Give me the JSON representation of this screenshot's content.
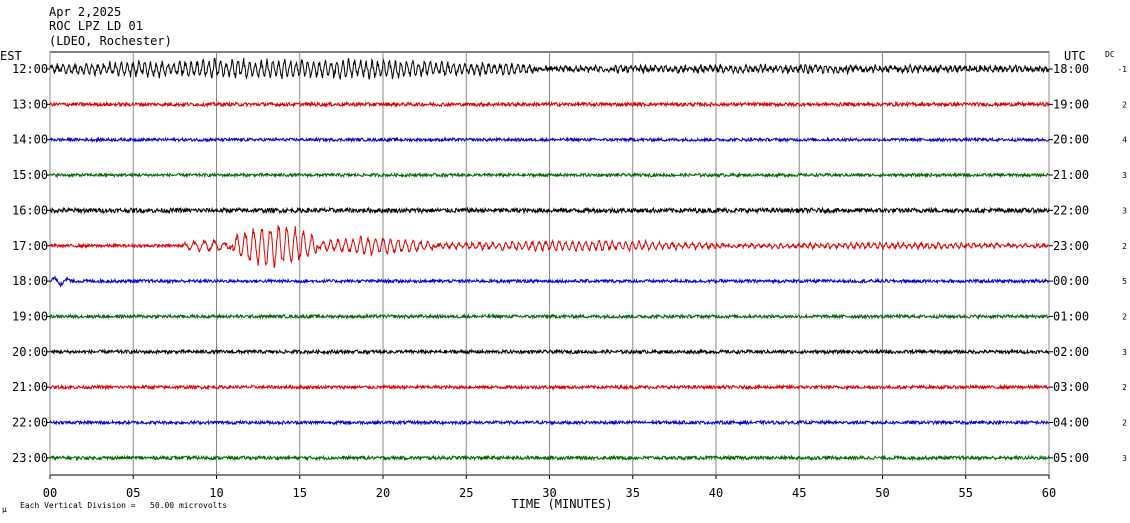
{
  "header": {
    "date": "Apr 2,2025",
    "station": "ROC LPZ LD 01",
    "network": "(LDEO, Rochester)"
  },
  "labels": {
    "left_tz": "EST",
    "right_tz": "UTC",
    "dc": "DC",
    "xlabel": "TIME (MINUTES)",
    "footer_mark": "µ",
    "footer": "Each Vertical Division =   50.00 microvolts"
  },
  "chart_data": {
    "type": "line",
    "title": "ROC LPZ LD 01",
    "xlabel": "TIME (MINUTES)",
    "ylabel": "",
    "xlim": [
      0,
      60
    ],
    "x_ticks": [
      "00",
      "05",
      "10",
      "15",
      "20",
      "25",
      "30",
      "35",
      "40",
      "45",
      "50",
      "55",
      "60"
    ],
    "grid": true,
    "vertical_division": "50.00 microvolts",
    "colors": [
      "#000000",
      "#dd0000",
      "#0000cc",
      "#006600"
    ],
    "rows": [
      {
        "est": "12:00",
        "utc": "18:00",
        "dc": "-1",
        "color": "#000000",
        "noise": 2.5,
        "events": [
          {
            "start": 0,
            "end": 29,
            "amp": 9,
            "period": 0.35
          },
          {
            "start": 29,
            "end": 60,
            "amp": 3,
            "period": 0.3
          }
        ]
      },
      {
        "est": "13:00",
        "utc": "19:00",
        "dc": "2",
        "color": "#dd0000",
        "noise": 1.8,
        "events": []
      },
      {
        "est": "14:00",
        "utc": "20:00",
        "dc": "4",
        "color": "#0000cc",
        "noise": 1.5,
        "events": []
      },
      {
        "est": "15:00",
        "utc": "21:00",
        "dc": "3",
        "color": "#006600",
        "noise": 1.5,
        "events": []
      },
      {
        "est": "16:00",
        "utc": "22:00",
        "dc": "3",
        "color": "#000000",
        "noise": 2.3,
        "events": []
      },
      {
        "est": "17:00",
        "utc": "23:00",
        "dc": "2",
        "color": "#dd0000",
        "noise": 1.5,
        "events": [
          {
            "start": 8,
            "end": 11,
            "amp": 6,
            "period": 0.6
          },
          {
            "start": 11,
            "end": 16,
            "amp": 22,
            "period": 0.5
          },
          {
            "start": 16,
            "end": 23,
            "amp": 9,
            "period": 0.45
          },
          {
            "start": 23,
            "end": 40,
            "amp": 5,
            "period": 0.4
          },
          {
            "start": 40,
            "end": 60,
            "amp": 2.5,
            "period": 0.35
          }
        ]
      },
      {
        "est": "18:00",
        "utc": "00:00",
        "dc": "5",
        "color": "#0000cc",
        "noise": 1.6,
        "events": [
          {
            "start": 0,
            "end": 1.2,
            "amp": 5,
            "period": 0.8
          }
        ]
      },
      {
        "est": "19:00",
        "utc": "01:00",
        "dc": "2",
        "color": "#006600",
        "noise": 1.6,
        "events": []
      },
      {
        "est": "20:00",
        "utc": "02:00",
        "dc": "3",
        "color": "#000000",
        "noise": 1.7,
        "events": []
      },
      {
        "est": "21:00",
        "utc": "03:00",
        "dc": "2",
        "color": "#dd0000",
        "noise": 1.6,
        "events": []
      },
      {
        "est": "22:00",
        "utc": "04:00",
        "dc": "2",
        "color": "#0000cc",
        "noise": 1.6,
        "events": []
      },
      {
        "est": "23:00",
        "utc": "05:00",
        "dc": "3",
        "color": "#006600",
        "noise": 1.7,
        "events": []
      }
    ]
  }
}
